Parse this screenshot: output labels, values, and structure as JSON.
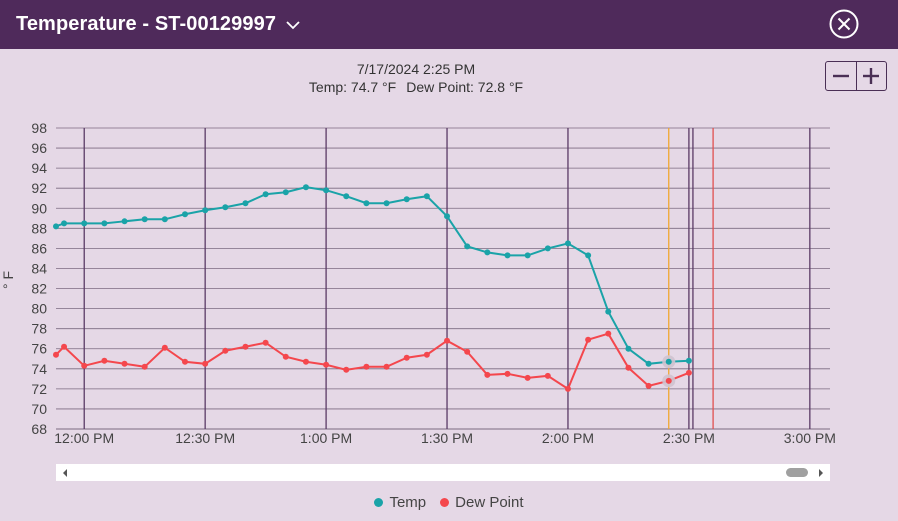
{
  "window": {
    "title": "Temperature - ST-00129997",
    "chevron_icon": "chevron-down-icon",
    "close_icon": "close-circle-icon"
  },
  "readout": {
    "timestamp": "7/17/2024 2:25 PM",
    "temp_text": "Temp: 74.7 °F",
    "dew_text": "Dew Point: 72.8 °F"
  },
  "zoom": {
    "out_icon": "minus-icon",
    "in_icon": "plus-icon"
  },
  "colors": {
    "temp": "#1aa3a8",
    "dew": "#f4474d",
    "grid": "#7b6a80",
    "vline": "#5a3a66",
    "cursor": "#f0a830",
    "now_line": "#e05050",
    "header": "#4f2a5b"
  },
  "chart_data": {
    "type": "line",
    "ylabel": "° F",
    "ylim": [
      68,
      98
    ],
    "ytick_step": 2,
    "x_unit": "time of day, 2024-07-17",
    "xlim": [
      "11:53 AM",
      "3:05 PM"
    ],
    "xticks": [
      "12:00 PM",
      "12:30 PM",
      "1:00 PM",
      "1:30 PM",
      "2:00 PM",
      "2:30 PM",
      "3:00 PM"
    ],
    "extra_vline_times": [
      "2:25 PM",
      "2:31 PM"
    ],
    "cursor_time": "2:25 PM",
    "now_time": "2:36 PM",
    "grid": true,
    "legend_position": "bottom",
    "x": [
      "11:53 AM",
      "11:55 AM",
      "12:00 PM",
      "12:05 PM",
      "12:10 PM",
      "12:15 PM",
      "12:20 PM",
      "12:25 PM",
      "12:30 PM",
      "12:35 PM",
      "12:40 PM",
      "12:45 PM",
      "12:50 PM",
      "12:55 PM",
      "1:00 PM",
      "1:05 PM",
      "1:10 PM",
      "1:15 PM",
      "1:20 PM",
      "1:25 PM",
      "1:30 PM",
      "1:35 PM",
      "1:40 PM",
      "1:45 PM",
      "1:50 PM",
      "1:55 PM",
      "2:00 PM",
      "2:05 PM",
      "2:10 PM",
      "2:15 PM",
      "2:20 PM",
      "2:25 PM",
      "2:30 PM"
    ],
    "series": [
      {
        "name": "Temp",
        "values": [
          88.2,
          88.5,
          88.5,
          88.5,
          88.7,
          88.9,
          88.9,
          89.4,
          89.8,
          90.1,
          90.5,
          91.4,
          91.6,
          92.1,
          91.8,
          91.2,
          90.5,
          90.5,
          90.9,
          91.2,
          89.2,
          86.2,
          85.6,
          85.3,
          85.3,
          86.0,
          86.5,
          85.3,
          79.7,
          76.0,
          74.5,
          74.7,
          74.8
        ]
      },
      {
        "name": "Dew Point",
        "values": [
          75.4,
          76.2,
          74.3,
          74.8,
          74.5,
          74.2,
          76.1,
          74.7,
          74.5,
          75.8,
          76.2,
          76.6,
          75.2,
          74.7,
          74.4,
          73.9,
          74.2,
          74.2,
          75.1,
          75.4,
          76.8,
          75.7,
          73.4,
          73.5,
          73.1,
          73.3,
          72.0,
          76.9,
          77.5,
          74.1,
          72.3,
          72.8,
          73.6
        ]
      }
    ]
  },
  "scrollbar": {
    "left_icon": "scroll-left-arrow-icon",
    "right_icon": "scroll-right-arrow-icon"
  },
  "legend": {
    "items": [
      {
        "label": "Temp"
      },
      {
        "label": "Dew Point"
      }
    ]
  }
}
